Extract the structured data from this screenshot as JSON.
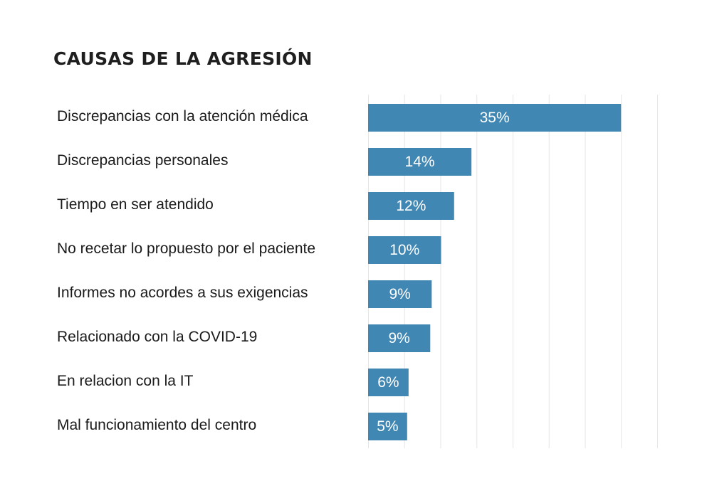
{
  "chart_data": {
    "type": "bar",
    "orientation": "horizontal",
    "title": "CAUSAS DE LA AGRESIÓN",
    "categories": [
      "Discrepancias con la atención médica",
      "Discrepancias personales",
      "Tiempo en ser atendido",
      "No recetar lo propuesto por el paciente",
      "Informes no acordes a sus exigencias",
      "Relacionado con la COVID-19",
      "En relacion con la IT",
      "Mal funcionamiento del centro"
    ],
    "values": [
      35,
      14.3,
      11.9,
      10.1,
      8.8,
      8.6,
      5.6,
      5.4
    ],
    "data_labels": [
      "35%",
      "14%",
      "12%",
      "10%",
      "9%",
      "9%",
      "6%",
      "5%"
    ],
    "xlim": [
      0,
      40
    ],
    "x_gridlines": [
      0,
      5,
      10,
      15,
      20,
      25,
      30,
      35,
      40
    ],
    "grid": true,
    "legend": "none",
    "bar_color": "#4187b3",
    "gridline_color": "#e6e6e6",
    "xlabel": "",
    "ylabel": ""
  }
}
